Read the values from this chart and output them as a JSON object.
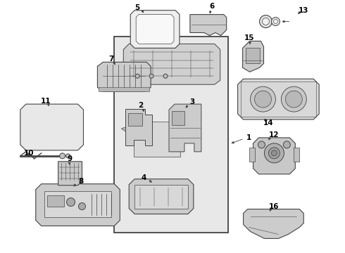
{
  "bg_color": "#ffffff",
  "line_color": "#444444",
  "fill_light": "#e8e8e8",
  "fill_mid": "#d4d4d4",
  "fill_dark": "#c0c0c0",
  "label_color": "#000000",
  "figsize": [
    4.9,
    3.6
  ],
  "dpi": 100
}
